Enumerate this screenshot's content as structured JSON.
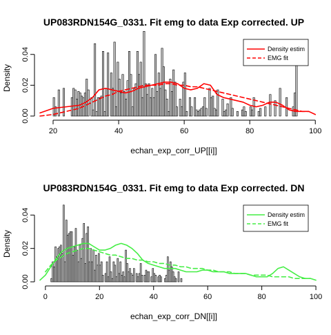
{
  "chart_data": [
    {
      "type": "histogram+density",
      "title": "UP083RDN154G_0331. Fit emg to data Exp corrected. UP",
      "xlabel": "echan_exp_corr_UP[[i]]",
      "ylabel": "Density",
      "xlim": [
        16,
        101
      ],
      "ylim": [
        0,
        0.052
      ],
      "x_ticks": [
        "20",
        "40",
        "60",
        "80",
        "100"
      ],
      "x_tick_values": [
        20,
        40,
        60,
        80,
        100
      ],
      "y_ticks": [
        "0.00",
        "0.02",
        "0.04"
      ],
      "y_tick_values": [
        0,
        0.02,
        0.04
      ],
      "bin_width": 1,
      "bin_start": 20,
      "bar_color": "#c8c8c8",
      "histogram_values": [
        0.012,
        0.006,
        0.0,
        0.017,
        0.0,
        0.0,
        0.018,
        0.0,
        0.0,
        0.0,
        0.0,
        0.012,
        0.018,
        0.017,
        0.011,
        0.016,
        0.015,
        0.013,
        0.012,
        0.015,
        0.024,
        0.017,
        0.0,
        0.012,
        0.004,
        0.047,
        0.003,
        0.012,
        0.012,
        0.013,
        0.042,
        0.003,
        0.018,
        0.041,
        0.0,
        0.028,
        0.018,
        0.048,
        0.006,
        0.035,
        0.024,
        0.015,
        0.027,
        0.016,
        0.011,
        0.023,
        0.042,
        0.027,
        0.006,
        0.018,
        0.021,
        0.042,
        0.027,
        0.035,
        0.012,
        0.055,
        0.021,
        0.014,
        0.021,
        0.012,
        0.018,
        0.012,
        0.04,
        0.016,
        0.028,
        0.018,
        0.044,
        0.032,
        0.017,
        0.011,
        0.003,
        0.024,
        0.016,
        0.03,
        0.022,
        0.006,
        0.0,
        0.011,
        0.006,
        0.022,
        0.028,
        0.003,
        0.0,
        0.012,
        0.006,
        0.0,
        0.012,
        0.004,
        0.003,
        0.004,
        0.005,
        0.006,
        0.012,
        0.005,
        0.0,
        0.018,
        0.012,
        0.013,
        0.005,
        0.004,
        0.017,
        0.0,
        0.0,
        0.011,
        0.003,
        0.004,
        0.008,
        0.0,
        0.012,
        0.005,
        0.0,
        0.0,
        0.003,
        0.0,
        0.0,
        0.004,
        0.006,
        0.003,
        0.0,
        0.0,
        0.006,
        0.004,
        0.012,
        0.0,
        0.0,
        0.003,
        0.005,
        0.0,
        0.0,
        0.006,
        0.0,
        0.0,
        0.014,
        0.0,
        0.0,
        0.01,
        0.0,
        0.0,
        0.018,
        0.0,
        0.0,
        0.0,
        0.012,
        0.0,
        0.0,
        0.0,
        0.006,
        0.015,
        0.045
      ],
      "series": [
        {
          "name": "Density estim",
          "color": "#ff0000",
          "style": "solid",
          "x": [
            16,
            20,
            24,
            28,
            30,
            32,
            34,
            36,
            38,
            40,
            42,
            44,
            46,
            48,
            50,
            52,
            54,
            56,
            58,
            60,
            62,
            64,
            66,
            68,
            70,
            72,
            74,
            76,
            78,
            80,
            82,
            84,
            86,
            88,
            90,
            92,
            94,
            96,
            98,
            100
          ],
          "values": [
            0.002,
            0.005,
            0.006,
            0.007,
            0.009,
            0.012,
            0.017,
            0.018,
            0.017,
            0.016,
            0.015,
            0.016,
            0.018,
            0.019,
            0.02,
            0.021,
            0.022,
            0.022,
            0.021,
            0.018,
            0.017,
            0.018,
            0.021,
            0.02,
            0.014,
            0.012,
            0.011,
            0.01,
            0.009,
            0.007,
            0.006,
            0.007,
            0.009,
            0.009,
            0.007,
            0.004,
            0.003,
            0.003,
            0.003,
            0.001
          ]
        },
        {
          "name": "EMG fit",
          "color": "#ff0000",
          "style": "dashed",
          "x": [
            16,
            20,
            24,
            28,
            30,
            32,
            34,
            36,
            38,
            40,
            42,
            44,
            46,
            48,
            50,
            52,
            54,
            56,
            58,
            60,
            62,
            64,
            66,
            68,
            70,
            72,
            74,
            76,
            78,
            80,
            82,
            84,
            86,
            88,
            90,
            92,
            94,
            96,
            98
          ],
          "values": [
            0.0,
            0.001,
            0.003,
            0.005,
            0.007,
            0.009,
            0.011,
            0.013,
            0.014,
            0.016,
            0.017,
            0.018,
            0.019,
            0.02,
            0.02,
            0.02,
            0.021,
            0.021,
            0.02,
            0.02,
            0.019,
            0.019,
            0.018,
            0.017,
            0.016,
            0.015,
            0.014,
            0.013,
            0.012,
            0.011,
            0.01,
            0.009,
            0.008,
            0.007,
            0.006,
            0.005,
            0.004,
            0.003,
            0.003
          ]
        }
      ],
      "legend_position": "top-right"
    },
    {
      "type": "histogram+density",
      "title": "UP083RDN154G_0331. Fit emg to data Exp corrected. DN",
      "xlabel": "echan_exp_corr_DN[[i]]",
      "ylabel": "Density",
      "xlim": [
        -2,
        101
      ],
      "ylim": [
        0,
        0.048
      ],
      "x_ticks": [
        "0",
        "20",
        "40",
        "60",
        "80",
        "100"
      ],
      "x_tick_values": [
        0,
        20,
        40,
        60,
        80,
        100
      ],
      "y_ticks": [
        "0.00",
        "0.02",
        "0.04"
      ],
      "y_tick_values": [
        0,
        0.02,
        0.04
      ],
      "bin_width": 1,
      "bin_start": 2,
      "bar_color": "#c8c8c8",
      "histogram_values": [
        0.002,
        0.012,
        0.009,
        0.021,
        0.015,
        0.02,
        0.021,
        0.022,
        0.017,
        0.046,
        0.012,
        0.037,
        0.028,
        0.029,
        0.03,
        0.03,
        0.016,
        0.021,
        0.032,
        0.019,
        0.012,
        0.022,
        0.014,
        0.026,
        0.035,
        0.011,
        0.029,
        0.033,
        0.012,
        0.02,
        0.012,
        0.019,
        0.007,
        0.016,
        0.01,
        0.017,
        0.01,
        0.012,
        0.004,
        0.0,
        0.005,
        0.012,
        0.003,
        0.015,
        0.006,
        0.002,
        0.012,
        0.01,
        0.003,
        0.014,
        0.005,
        0.012,
        0.004,
        0.006,
        0.003,
        0.019,
        0.011,
        0.006,
        0.008,
        0.005,
        0.004,
        0.008,
        0.0,
        0.005,
        0.003,
        0.005,
        0.011,
        0.004,
        0.0,
        0.004,
        0.007,
        0.006,
        0.006,
        0.0,
        0.003,
        0.008,
        0.005,
        0.004,
        0.0,
        0.003,
        0.004,
        0.003,
        0.0,
        0.0,
        0.002,
        0.004,
        0.015,
        0.007,
        0.012,
        0.009,
        0.006,
        0.003,
        0.002,
        0.0,
        0.006,
        0.0,
        0.002,
        0.0
      ],
      "series": [
        {
          "name": "Density estim",
          "color": "#44ee44",
          "style": "solid",
          "x": [
            -2,
            0,
            2,
            4,
            6,
            8,
            10,
            12,
            14,
            16,
            18,
            20,
            22,
            24,
            26,
            28,
            30,
            32,
            34,
            36,
            38,
            40,
            42,
            44,
            46,
            48,
            50,
            52,
            54,
            56,
            58,
            60,
            62,
            64,
            66,
            68,
            70,
            72,
            74,
            76,
            78,
            80,
            82,
            84,
            86,
            88,
            90,
            92,
            94,
            96,
            98,
            100
          ],
          "values": [
            0.001,
            0.004,
            0.009,
            0.014,
            0.018,
            0.02,
            0.021,
            0.022,
            0.023,
            0.023,
            0.021,
            0.019,
            0.019,
            0.02,
            0.022,
            0.023,
            0.022,
            0.02,
            0.017,
            0.013,
            0.011,
            0.01,
            0.009,
            0.008,
            0.008,
            0.008,
            0.007,
            0.006,
            0.006,
            0.006,
            0.007,
            0.007,
            0.006,
            0.006,
            0.006,
            0.005,
            0.005,
            0.005,
            0.005,
            0.004,
            0.003,
            0.003,
            0.003,
            0.005,
            0.008,
            0.009,
            0.007,
            0.005,
            0.003,
            0.002,
            0.002,
            0.001
          ]
        },
        {
          "name": "EMG fit",
          "color": "#44ee44",
          "style": "dashed",
          "x": [
            0,
            2,
            4,
            6,
            8,
            10,
            12,
            14,
            16,
            18,
            20,
            22,
            24,
            26,
            28,
            30,
            32,
            34,
            36,
            38,
            40,
            42,
            44,
            46,
            48,
            50,
            52,
            54,
            56,
            58,
            60,
            62,
            64,
            66,
            68,
            70,
            72,
            74,
            76,
            78,
            80,
            82,
            84,
            86,
            88,
            90,
            92,
            94,
            96,
            98
          ],
          "values": [
            0.006,
            0.01,
            0.013,
            0.015,
            0.017,
            0.018,
            0.019,
            0.02,
            0.02,
            0.019,
            0.018,
            0.017,
            0.016,
            0.016,
            0.015,
            0.014,
            0.014,
            0.013,
            0.013,
            0.012,
            0.012,
            0.011,
            0.011,
            0.01,
            0.01,
            0.009,
            0.009,
            0.008,
            0.008,
            0.008,
            0.007,
            0.007,
            0.006,
            0.006,
            0.006,
            0.005,
            0.005,
            0.005,
            0.004,
            0.004,
            0.004,
            0.004,
            0.003,
            0.003,
            0.003,
            0.003,
            0.002,
            0.002,
            0.002,
            0.002
          ]
        }
      ],
      "legend_position": "top-right"
    }
  ]
}
